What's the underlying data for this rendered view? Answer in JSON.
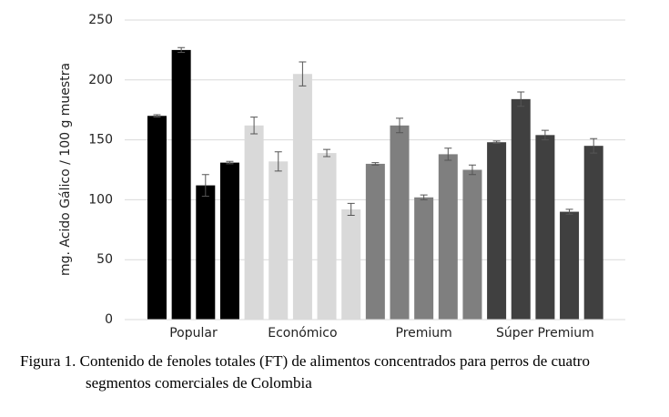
{
  "chart_data": {
    "type": "bar",
    "y_label": "mg. Acido Gálico / 100 g muestra",
    "title_lines": [
      "Figura 1. Contenido de fenoles totales (FT) de alimentos concentrados para perros de cuatro",
      "segmentos comerciales de Colombia"
    ],
    "ylim": [
      0,
      250
    ],
    "yticks": [
      0,
      50,
      100,
      150,
      200,
      250
    ],
    "grid": true,
    "groups": [
      {
        "name": "Popular",
        "color": "#000000",
        "values": [
          170,
          225,
          112,
          131
        ],
        "errors": [
          1,
          2,
          9,
          1
        ]
      },
      {
        "name": "Económico",
        "color": "#d9d9d9",
        "values": [
          162,
          132,
          205,
          139,
          92
        ],
        "errors": [
          7,
          8,
          10,
          3,
          5
        ]
      },
      {
        "name": "Premium",
        "color": "#7f7f7f",
        "values": [
          130,
          162,
          102,
          138,
          125
        ],
        "errors": [
          1,
          6,
          2,
          5,
          4
        ]
      },
      {
        "name": "Súper Premium",
        "color": "#404040",
        "values": [
          148,
          184,
          154,
          90,
          145
        ],
        "errors": [
          1,
          6,
          4,
          2,
          6
        ]
      }
    ]
  }
}
